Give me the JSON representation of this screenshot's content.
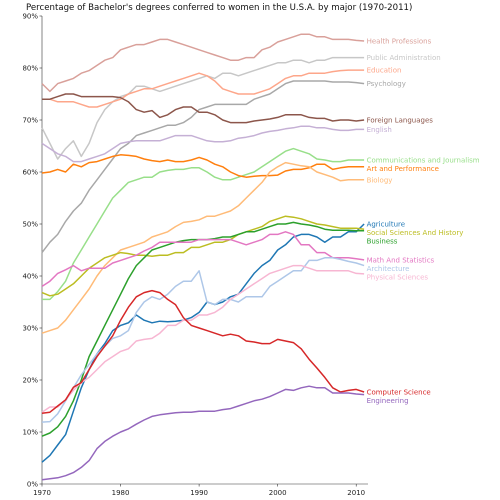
{
  "chart_data": {
    "type": "line",
    "title": "Percentage of Bachelor's degrees conferred to women in the U.S.A. by major (1970-2011)",
    "x": [
      1970,
      1971,
      1972,
      1973,
      1974,
      1975,
      1976,
      1977,
      1978,
      1979,
      1980,
      1981,
      1982,
      1983,
      1984,
      1985,
      1986,
      1987,
      1988,
      1989,
      1990,
      1991,
      1992,
      1993,
      1994,
      1995,
      1996,
      1997,
      1998,
      1999,
      2000,
      2001,
      2002,
      2003,
      2004,
      2005,
      2006,
      2007,
      2008,
      2009,
      2010,
      2011
    ],
    "xlim": [
      1970,
      2011.5
    ],
    "ylim": [
      0,
      90
    ],
    "xticks": [
      1970,
      1980,
      1990,
      2000,
      2010
    ],
    "yticks": [
      0,
      10,
      20,
      30,
      40,
      50,
      60,
      70,
      80,
      90
    ],
    "ytick_labels": [
      "0%",
      "10%",
      "20%",
      "30%",
      "40%",
      "50%",
      "60%",
      "70%",
      "80%",
      "90%"
    ],
    "grid": false,
    "legend": "labels at right end of each line",
    "series": [
      {
        "name": "Health Professions",
        "color": "#d9a09a",
        "values": [
          77,
          75.5,
          77,
          77.5,
          78,
          79,
          79.5,
          80.5,
          81.5,
          82,
          83.5,
          84,
          84.5,
          84.5,
          85,
          85.5,
          85.5,
          85,
          84.5,
          84,
          83.5,
          83,
          82.5,
          82,
          81.5,
          81.5,
          82,
          82,
          83.5,
          84,
          85,
          85.5,
          86,
          86.5,
          86.5,
          86,
          86,
          85.5,
          85.5,
          85.5,
          85.3,
          85.2
        ]
      },
      {
        "name": "Public Administration",
        "color": "#c7c7c7",
        "values": [
          68.5,
          65.5,
          62.5,
          64.5,
          66,
          63,
          65.5,
          69.5,
          72,
          73.5,
          74.5,
          75,
          76.5,
          76.5,
          76,
          75.5,
          76,
          76.5,
          77,
          77.5,
          78,
          78.5,
          78,
          79,
          79,
          78.5,
          79,
          79.5,
          80,
          80.5,
          81,
          81,
          81.5,
          81.5,
          81,
          81.5,
          81.5,
          82,
          82,
          82,
          82,
          82
        ]
      },
      {
        "name": "Education",
        "color": "#fda68a",
        "values": [
          74,
          74,
          73.5,
          73.5,
          73.5,
          73,
          72.5,
          72.5,
          73,
          73.5,
          74,
          75,
          75.5,
          76,
          76,
          76.5,
          77,
          77.5,
          78,
          78.5,
          79,
          78.5,
          77.5,
          76,
          75.5,
          75,
          75,
          75,
          75.5,
          76,
          77,
          78,
          78.5,
          78.5,
          79,
          79,
          79,
          79.3,
          79.5,
          79.6,
          79.6,
          79.6
        ]
      },
      {
        "name": "Psychology",
        "color": "#a8a8a8",
        "values": [
          44.5,
          46.5,
          48,
          50.5,
          52.5,
          54,
          56.5,
          58.5,
          60.5,
          62.5,
          64.5,
          65.5,
          67,
          67.5,
          68,
          68.5,
          69,
          69,
          69.5,
          70.5,
          72,
          72.5,
          73,
          73,
          73,
          73,
          73,
          74,
          74.5,
          75,
          76,
          77,
          77.5,
          77.5,
          77.5,
          77.5,
          77.5,
          77.3,
          77.3,
          77.3,
          77.2,
          77
        ]
      },
      {
        "name": "Foreign Languages",
        "color": "#8c564b",
        "values": [
          74,
          74,
          74.5,
          75,
          75,
          74.5,
          74.5,
          74.5,
          74.5,
          74.5,
          74.3,
          73.5,
          72,
          71.5,
          71.8,
          70.5,
          71,
          72,
          72.5,
          72.5,
          71.5,
          71.5,
          71,
          70,
          69.5,
          69.5,
          69.5,
          69.8,
          70,
          70.2,
          70.5,
          71,
          71,
          71,
          70.5,
          70.3,
          70.3,
          69.8,
          70,
          70,
          69.8,
          70
        ]
      },
      {
        "name": "English",
        "color": "#c5b0d5",
        "values": [
          65.5,
          64.5,
          63.5,
          63,
          62,
          62,
          62.5,
          63,
          63.5,
          64.5,
          65.5,
          65.8,
          66,
          66,
          66,
          66,
          66.5,
          67,
          67,
          67,
          66.5,
          66,
          65.8,
          65.8,
          66,
          66.5,
          66.7,
          67,
          67.5,
          67.8,
          68,
          68.3,
          68.5,
          68.8,
          68.8,
          68.5,
          68.5,
          68.2,
          68,
          68,
          68.2,
          68.2
        ]
      },
      {
        "name": "Communications and Journalism",
        "color": "#98df8a",
        "values": [
          35.5,
          35.5,
          37,
          39,
          42.5,
          45,
          47.5,
          50,
          52.5,
          55,
          56.5,
          58,
          58.5,
          59,
          59,
          60,
          60.3,
          60.5,
          60.5,
          60.8,
          60.8,
          60,
          59,
          58.5,
          58.5,
          59,
          59.5,
          60,
          61,
          62,
          63,
          64,
          64.5,
          64,
          63.5,
          62.5,
          62.3,
          62,
          62,
          62.3,
          62.3,
          62.3
        ]
      },
      {
        "name": "Art and Performance",
        "color": "#ff7f0e",
        "values": [
          59.8,
          60,
          60.5,
          60,
          61.5,
          61,
          61.8,
          62,
          62.5,
          63,
          63.3,
          63.2,
          63,
          62.5,
          62.2,
          62,
          62.3,
          62,
          62,
          62.3,
          62.8,
          62.3,
          61.5,
          61,
          60,
          59.3,
          59,
          59.2,
          59.3,
          59.3,
          59.4,
          60.2,
          60.5,
          60.5,
          60.8,
          61.5,
          61.5,
          60.5,
          60.8,
          61,
          61,
          61
        ]
      },
      {
        "name": "Biology",
        "color": "#ffbb78",
        "values": [
          29,
          29.5,
          30,
          31.5,
          33.5,
          35.5,
          37.5,
          40,
          42,
          43.5,
          45,
          45.5,
          46,
          46.5,
          47.5,
          48,
          48.5,
          49.5,
          50.3,
          50.5,
          50.8,
          51.5,
          51.5,
          52,
          52.5,
          53.5,
          55,
          56.5,
          58,
          60,
          61,
          61.8,
          61.5,
          61.2,
          61,
          60,
          59.5,
          59,
          58.3,
          58.5,
          58.5,
          58.5
        ]
      },
      {
        "name": "Agriculture",
        "color": "#1f77b4",
        "values": [
          4.2,
          5.5,
          7.5,
          9.5,
          14,
          18.5,
          22,
          25,
          27,
          29.5,
          30.5,
          31,
          32.5,
          31.5,
          31,
          31.3,
          31.2,
          31.3,
          31.5,
          32,
          33,
          35,
          34.5,
          35,
          36,
          36.5,
          38.5,
          40.5,
          42,
          43,
          45,
          46,
          47.5,
          48,
          48,
          47.5,
          46.5,
          47.5,
          47.5,
          48.5,
          48.5,
          50
        ]
      },
      {
        "name": "Social Sciences And History",
        "color": "#bcbd22",
        "values": [
          36.8,
          36.2,
          36.5,
          37.5,
          38.5,
          40,
          41.5,
          42.5,
          43.5,
          44,
          44.5,
          44.3,
          44,
          44,
          43.8,
          44,
          44,
          44.5,
          44.5,
          45.5,
          45.5,
          46,
          46.5,
          46.5,
          47,
          48,
          48.5,
          49,
          49.5,
          50.5,
          51,
          51.5,
          51.3,
          51,
          50.5,
          50,
          49.8,
          49.5,
          49.2,
          49.2,
          49.2,
          49
        ]
      },
      {
        "name": "Business",
        "color": "#2ca02c",
        "values": [
          9.2,
          9.8,
          11,
          13,
          16,
          20,
          24.5,
          27.5,
          30.5,
          33.5,
          36.5,
          39.5,
          42,
          43.5,
          45,
          45.5,
          46,
          46.5,
          46.8,
          47,
          47,
          47,
          47.2,
          47.5,
          47.5,
          48,
          48.5,
          48.5,
          49,
          49.5,
          50,
          50,
          50.3,
          50,
          49.8,
          49.5,
          49,
          48.8,
          48.8,
          48.8,
          48.7,
          48.7
        ]
      },
      {
        "name": "Math And Statistics",
        "color": "#e377c2",
        "values": [
          38,
          39,
          40.5,
          41.2,
          42,
          41,
          41.5,
          41.5,
          41.5,
          42.5,
          43,
          43.5,
          44,
          44.8,
          45.5,
          46.5,
          46.5,
          46.5,
          46.5,
          46.5,
          47,
          47,
          47,
          47,
          47,
          46.5,
          46,
          46.5,
          47,
          48,
          48,
          48.5,
          48,
          46,
          46,
          44.5,
          44.5,
          43.5,
          43.5,
          43.5,
          43.3,
          43.1
        ]
      },
      {
        "name": "Architecture",
        "color": "#aec7e8",
        "values": [
          11.9,
          12,
          13.5,
          16,
          18.5,
          21,
          23,
          25,
          26.5,
          28,
          28.5,
          29.5,
          33,
          35,
          36,
          35.5,
          36.5,
          38,
          39,
          39,
          41,
          35,
          34.5,
          35.5,
          35.5,
          35,
          36,
          36,
          36,
          38,
          39,
          40,
          41,
          41,
          43,
          43,
          43.5,
          43.5,
          43.2,
          42.8,
          42.5,
          42
        ]
      },
      {
        "name": "Physical Sciences",
        "color": "#f7b6d2",
        "values": [
          13.8,
          14.8,
          14.8,
          16.2,
          18,
          19.5,
          20.5,
          22,
          23.5,
          24.5,
          25.5,
          26,
          27.5,
          27.8,
          28,
          29,
          30.5,
          30.5,
          31.5,
          31.5,
          32.5,
          32.5,
          33,
          34,
          35.5,
          36.5,
          37.5,
          38.5,
          39.5,
          40.5,
          41,
          41.5,
          42,
          42,
          41.5,
          41,
          41,
          41,
          41,
          41,
          40.5,
          40.4
        ]
      },
      {
        "name": "Computer Science",
        "color": "#d62728",
        "values": [
          13.6,
          13.8,
          15,
          16.2,
          18.6,
          19.5,
          22,
          24.5,
          26.5,
          28.5,
          31.5,
          34,
          36,
          36.8,
          37.2,
          36.8,
          35.5,
          34.5,
          32,
          30.5,
          30,
          29.5,
          29,
          28.5,
          28.8,
          28.5,
          27.5,
          27.3,
          27,
          27,
          27.8,
          27.5,
          27.2,
          26,
          24,
          22.3,
          20.5,
          18.5,
          17.7,
          18,
          18.2,
          17.7
        ]
      },
      {
        "name": "Engineering",
        "color": "#9467bd",
        "values": [
          0.8,
          1,
          1.2,
          1.6,
          2.2,
          3.2,
          4.5,
          6.8,
          8.2,
          9.2,
          10,
          10.6,
          11.5,
          12.3,
          13,
          13.3,
          13.5,
          13.7,
          13.8,
          13.8,
          14,
          14,
          14,
          14.3,
          14.5,
          15,
          15.5,
          16,
          16.3,
          16.8,
          17.5,
          18.2,
          18,
          18.5,
          18.8,
          18.5,
          18.5,
          17.5,
          17.5,
          17.5,
          17.3,
          17.2
        ]
      }
    ]
  }
}
